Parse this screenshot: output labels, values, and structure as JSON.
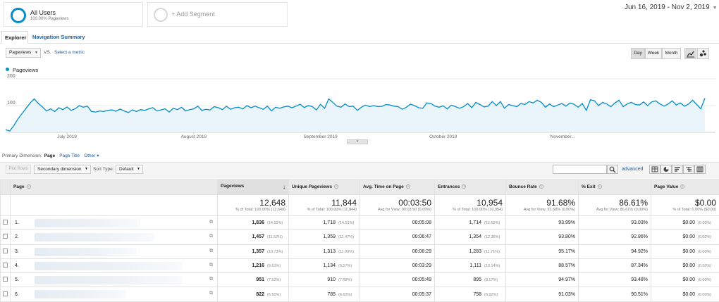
{
  "segments": {
    "all_users_title": "All Users",
    "all_users_sub": "100.00% Pageviews",
    "add_segment": "+ Add Segment"
  },
  "date_range": "Jun 16, 2019 - Nov 2, 2019",
  "tabs": {
    "explorer": "Explorer",
    "navigation_summary": "Navigation Summary"
  },
  "metric_controls": {
    "metric": "Pageviews",
    "vs": "VS.",
    "select_metric": "Select a metric"
  },
  "granularity": {
    "day": "Day",
    "week": "Week",
    "month": "Month"
  },
  "legend_label": "Pageviews",
  "chart_data": {
    "type": "area",
    "series": [
      {
        "name": "Pageviews",
        "color": "#058dc7",
        "values": [
          10,
          5,
          25,
          50,
          70,
          90,
          110,
          125,
          108,
          95,
          80,
          88,
          78,
          92,
          85,
          95,
          82,
          88,
          100,
          94,
          98,
          78,
          76,
          80,
          78,
          82,
          84,
          79,
          87,
          80,
          74,
          84,
          78,
          85,
          82,
          88,
          92,
          80,
          84,
          88,
          76,
          90,
          85,
          94,
          80,
          85,
          88,
          98,
          82,
          86,
          84,
          96,
          92,
          85,
          98,
          86,
          92,
          94,
          88,
          100,
          92,
          98,
          92,
          86,
          98,
          80,
          94,
          90,
          95,
          98,
          92,
          98,
          105,
          93,
          100,
          96,
          84,
          105,
          90,
          125,
          112,
          98,
          94,
          106,
          96,
          98,
          82,
          94,
          102,
          96,
          100,
          96,
          97,
          104,
          102,
          98,
          96,
          86,
          94,
          105,
          100,
          92,
          90,
          110,
          108,
          98,
          94,
          99,
          88,
          102,
          96,
          90,
          96,
          108,
          92,
          112,
          104,
          95,
          98,
          115,
          100,
          115,
          90,
          104,
          100,
          96,
          108,
          104,
          115,
          110,
          120,
          112,
          94,
          106,
          96,
          102,
          108,
          98,
          110,
          105,
          94,
          108,
          82,
          122,
          118,
          100,
          112,
          106,
          96,
          110,
          120,
          96,
          106,
          112,
          104,
          102,
          114,
          100,
          114,
          118,
          106,
          98,
          106,
          118,
          102,
          110,
          98,
          106,
          120,
          104,
          88,
          128
        ]
      }
    ],
    "x_tick_labels": [
      "July 2019",
      "August 2019",
      "September 2019",
      "October 2019",
      "November..."
    ],
    "y_tick_labels": [
      "200",
      "100"
    ],
    "ylim": [
      0,
      200
    ],
    "grid": true
  },
  "primary_dimension": {
    "label": "Primary Dimension:",
    "current": "Page",
    "page_title": "Page Title",
    "other": "Other"
  },
  "toolbar": {
    "plot_rows": "Plot Rows",
    "secondary_dimension": "Secondary dimension",
    "sort_type_label": "Sort Type:",
    "sort_type_value": "Default",
    "advanced": "advanced"
  },
  "table": {
    "headers": [
      "Page",
      "Pageviews",
      "Unique Pageviews",
      "Avg. Time on Page",
      "Entrances",
      "Bounce Rate",
      "% Exit",
      "Page Value"
    ],
    "totals": [
      {
        "value": "12,648",
        "sub": "% of Total: 100.00% (12,648)"
      },
      {
        "value": "11,844",
        "sub": "% of Total: 100.00% (11,844)"
      },
      {
        "value": "00:03:50",
        "sub": "Avg for View: 00:03:50 (0.00%)"
      },
      {
        "value": "10,954",
        "sub": "% of Total: 100.00% (10,954)"
      },
      {
        "value": "91.68%",
        "sub": "Avg for View: 91.68% (0.00%)"
      },
      {
        "value": "86.61%",
        "sub": "Avg for View: 86.61% (0.00%)"
      },
      {
        "value": "$0.00",
        "sub": "% of Total: 0.00% ($0.00)"
      }
    ],
    "rows": [
      {
        "rank": "1.",
        "pageviews": "1,836",
        "pageviews_pct": "(14.52%)",
        "unique": "1,718",
        "unique_pct": "(14.51%)",
        "avg_time": "00:05:08",
        "entrances": "1,714",
        "entrances_pct": "(15.65%)",
        "bounce": "93.99%",
        "exit": "93.03%",
        "value": "$0.00",
        "value_pct": "(0.00%)"
      },
      {
        "rank": "2.",
        "pageviews": "1,457",
        "pageviews_pct": "(11.52%)",
        "unique": "1,359",
        "unique_pct": "(11.47%)",
        "avg_time": "00:06:47",
        "entrances": "1,354",
        "entrances_pct": "(12.36%)",
        "bounce": "93.80%",
        "exit": "92.86%",
        "value": "$0.00",
        "value_pct": "(0.00%)"
      },
      {
        "rank": "3.",
        "pageviews": "1,357",
        "pageviews_pct": "(10.73%)",
        "unique": "1,313",
        "unique_pct": "(11.09%)",
        "avg_time": "00:06:29",
        "entrances": "1,283",
        "entrances_pct": "(11.71%)",
        "bounce": "95.17%",
        "exit": "94.92%",
        "value": "$0.00",
        "value_pct": "(0.00%)"
      },
      {
        "rank": "4.",
        "pageviews": "1,216",
        "pageviews_pct": "(9.61%)",
        "unique": "1,134",
        "unique_pct": "(9.57%)",
        "avg_time": "00:03:29",
        "entrances": "1,111",
        "entrances_pct": "(10.14%)",
        "bounce": "88.57%",
        "exit": "87.34%",
        "value": "$0.00",
        "value_pct": "(0.00%)"
      },
      {
        "rank": "5.",
        "pageviews": "951",
        "pageviews_pct": "(7.52%)",
        "unique": "910",
        "unique_pct": "(7.68%)",
        "avg_time": "00:05:49",
        "entrances": "895",
        "entrances_pct": "(8.17%)",
        "bounce": "94.97%",
        "exit": "93.48%",
        "value": "$0.00",
        "value_pct": "(0.00%)"
      },
      {
        "rank": "6.",
        "pageviews": "822",
        "pageviews_pct": "(6.50%)",
        "unique": "785",
        "unique_pct": "(6.63%)",
        "avg_time": "00:05:37",
        "entrances": "758",
        "entrances_pct": "(6.92%)",
        "bounce": "91.03%",
        "exit": "90.51%",
        "value": "$0.00",
        "value_pct": "(0.00%)"
      }
    ]
  }
}
